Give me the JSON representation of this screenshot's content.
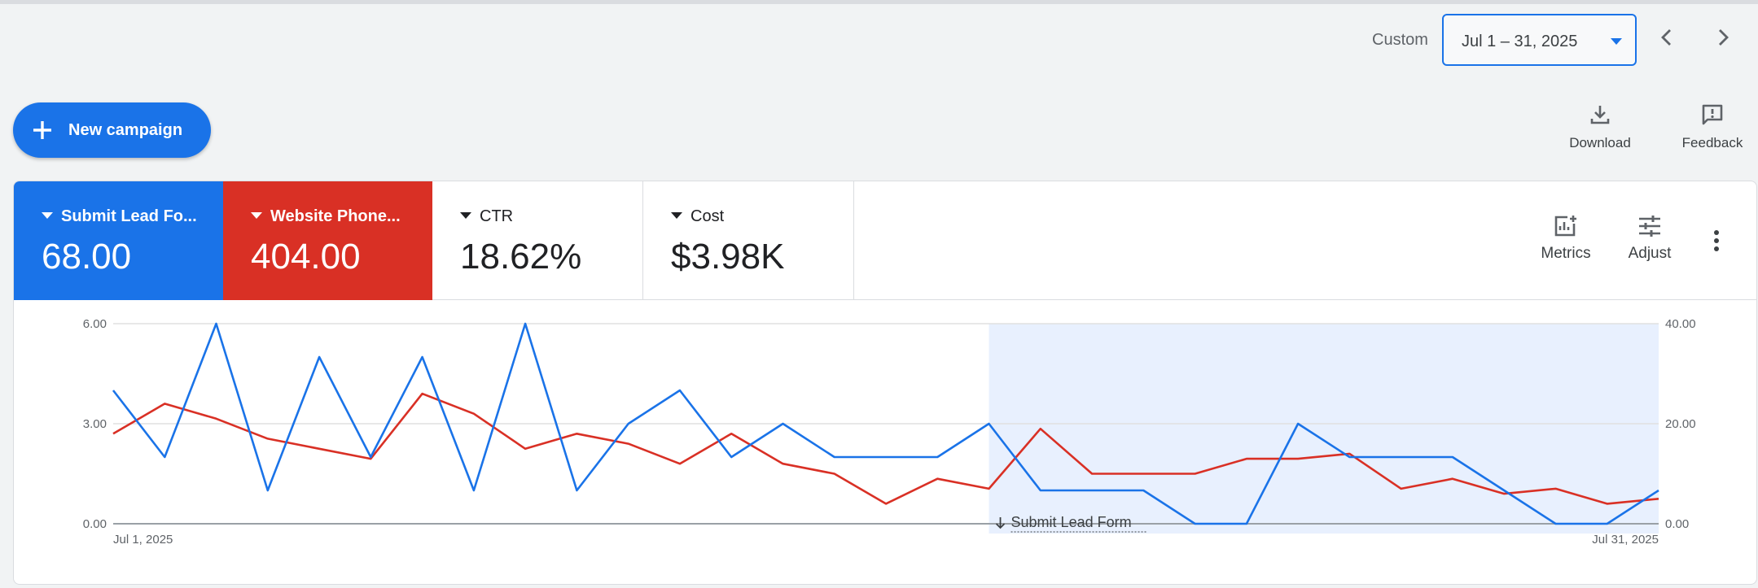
{
  "toolbar": {
    "custom_label": "Custom",
    "date_range": "Jul 1 – 31, 2025",
    "prev_icon": "chevron-left-icon",
    "next_icon": "chevron-right-icon"
  },
  "new_campaign_label": "New campaign",
  "tools": {
    "download_label": "Download",
    "feedback_label": "Feedback",
    "metrics_label": "Metrics",
    "adjust_label": "Adjust"
  },
  "metric_tiles": [
    {
      "name": "Submit Lead Fo...",
      "value": "68.00",
      "color": "#1a73e8"
    },
    {
      "name": "Website Phone...",
      "value": "404.00",
      "color": "#d93025"
    },
    {
      "name": "CTR",
      "value": "18.62%"
    },
    {
      "name": "Cost",
      "value": "$3.98K"
    }
  ],
  "chart_data": {
    "type": "line",
    "x": [
      "Jul 1",
      "Jul 2",
      "Jul 3",
      "Jul 4",
      "Jul 5",
      "Jul 6",
      "Jul 7",
      "Jul 8",
      "Jul 9",
      "Jul 10",
      "Jul 11",
      "Jul 12",
      "Jul 13",
      "Jul 14",
      "Jul 15",
      "Jul 16",
      "Jul 17",
      "Jul 18",
      "Jul 19",
      "Jul 20",
      "Jul 21",
      "Jul 22",
      "Jul 23",
      "Jul 24",
      "Jul 25",
      "Jul 26",
      "Jul 27",
      "Jul 28",
      "Jul 29",
      "Jul 30",
      "Jul 31"
    ],
    "x_tick_labels": [
      "Jul 1, 2025",
      "Jul 31, 2025"
    ],
    "y_left_ticks": [
      "0.00",
      "3.00",
      "6.00"
    ],
    "y_right_ticks": [
      "0.00",
      "20.00",
      "40.00"
    ],
    "ylim_left": [
      0,
      6
    ],
    "ylim_right": [
      0,
      40
    ],
    "series": [
      {
        "axis": "left",
        "color": "#1a73e8",
        "values": [
          4,
          2,
          6,
          1,
          5,
          2,
          5,
          1,
          6,
          1,
          3,
          4,
          2,
          3,
          2,
          2,
          2,
          3,
          1,
          1,
          1,
          0,
          0,
          3,
          2,
          2,
          2,
          1,
          0,
          0,
          1
        ]
      },
      {
        "axis": "right",
        "color": "#d93025",
        "values": [
          18,
          24,
          21,
          17,
          15,
          13,
          26,
          22,
          15,
          18,
          16,
          12,
          18,
          12,
          10,
          4,
          9,
          7,
          19,
          10,
          10,
          10,
          13,
          13,
          14,
          7,
          9,
          6,
          7,
          4,
          5
        ]
      }
    ],
    "highlight_from": 17,
    "highlight_to": 30,
    "annotation": "Submit Lead Form",
    "grid": true
  }
}
